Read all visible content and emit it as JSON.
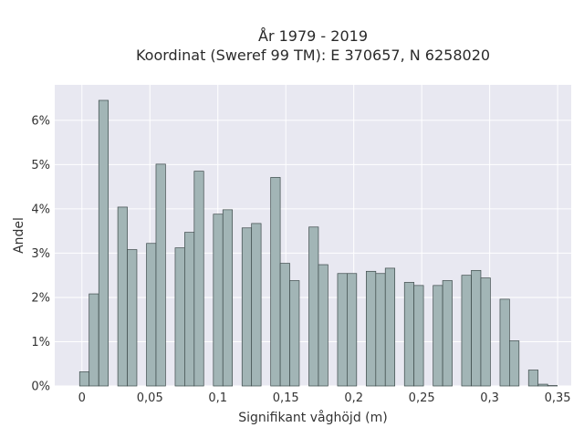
{
  "chart_data": {
    "type": "bar",
    "title_lines": [
      "År 1979 - 2019",
      "Koordinat (Sweref 99 TM): E 370657, N 6258020"
    ],
    "xlabel": "Signifikant våghöjd (m)",
    "ylabel": "Andel",
    "xlim": [
      -0.02,
      0.36
    ],
    "ylim": [
      0,
      6.8
    ],
    "bin_width": 0.007,
    "x_ticks": [
      {
        "value": 0,
        "label": "0"
      },
      {
        "value": 0.05,
        "label": "0,05"
      },
      {
        "value": 0.1,
        "label": "0,1"
      },
      {
        "value": 0.15,
        "label": "0,15"
      },
      {
        "value": 0.2,
        "label": "0,2"
      },
      {
        "value": 0.25,
        "label": "0,25"
      },
      {
        "value": 0.3,
        "label": "0,3"
      },
      {
        "value": 0.35,
        "label": "0,35"
      }
    ],
    "y_ticks": [
      {
        "value": 0,
        "label": "0%"
      },
      {
        "value": 1,
        "label": "1%"
      },
      {
        "value": 2,
        "label": "2%"
      },
      {
        "value": 3,
        "label": "3%"
      },
      {
        "value": 4,
        "label": "4%"
      },
      {
        "value": 5,
        "label": "5%"
      },
      {
        "value": 6,
        "label": "6%"
      }
    ],
    "grid": true,
    "colors": {
      "plot_bg": "#e8e8f1",
      "bar_fill": "#a2b5b6",
      "bar_edge": "#3d4a4a"
    },
    "x": [
      0.0018,
      0.0088,
      0.0159,
      0.0229,
      0.0299,
      0.0369,
      0.044,
      0.051,
      0.058,
      0.0651,
      0.0721,
      0.0791,
      0.0861,
      0.0932,
      0.1002,
      0.1072,
      0.1143,
      0.1213,
      0.1283,
      0.1353,
      0.1424,
      0.1494,
      0.1564,
      0.1635,
      0.1705,
      0.1775,
      0.1845,
      0.1916,
      0.1986,
      0.2056,
      0.2127,
      0.2197,
      0.2267,
      0.2337,
      0.2408,
      0.2478,
      0.2548,
      0.2619,
      0.2689,
      0.2759,
      0.2829,
      0.29,
      0.297,
      0.304,
      0.3111,
      0.3181,
      0.3251,
      0.3321,
      0.3392,
      0.3462
    ],
    "values": [
      0.32,
      2.08,
      6.45,
      0,
      4.04,
      3.08,
      0,
      3.22,
      5.01,
      0,
      3.12,
      3.47,
      4.85,
      0,
      3.88,
      3.98,
      0,
      3.57,
      3.67,
      0,
      4.71,
      2.77,
      2.38,
      0,
      3.59,
      2.74,
      0,
      2.54,
      2.54,
      0,
      2.59,
      2.54,
      2.66,
      0,
      2.34,
      2.27,
      0,
      2.27,
      2.38,
      0,
      2.5,
      2.61,
      2.44,
      0,
      1.96,
      1.02,
      0,
      0.36,
      0.04,
      0.01
    ]
  }
}
